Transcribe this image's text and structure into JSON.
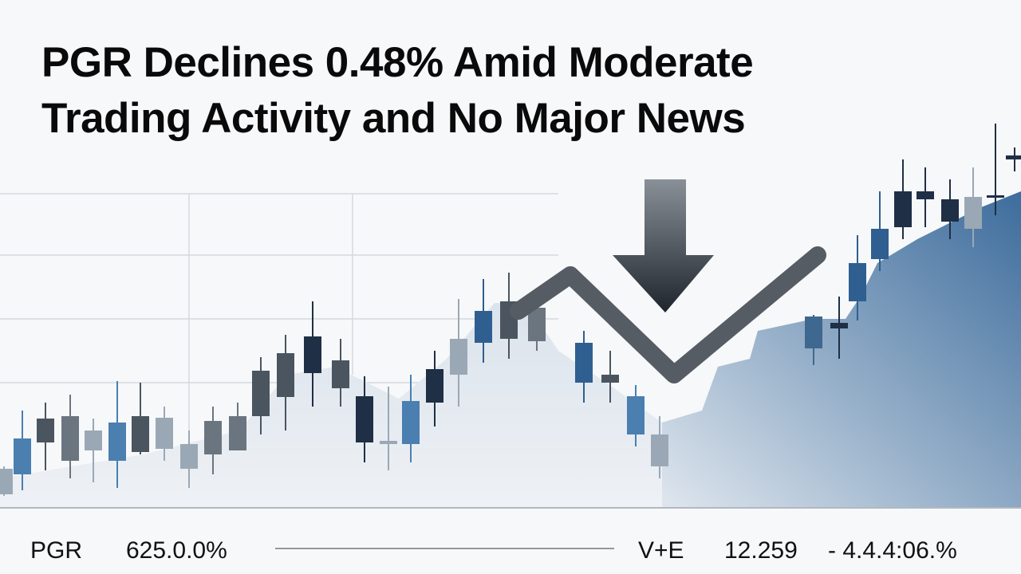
{
  "headline": {
    "lines": [
      "PGR Declines 0.48% Amid Moderate",
      "Trading Activity and No Major News"
    ]
  },
  "footer": {
    "ticker": "PGR",
    "left_value": "625.0.0%",
    "right_label": "V+E",
    "right_value": "12.259",
    "right_change": "- 4.4.4:06.%"
  }
}
